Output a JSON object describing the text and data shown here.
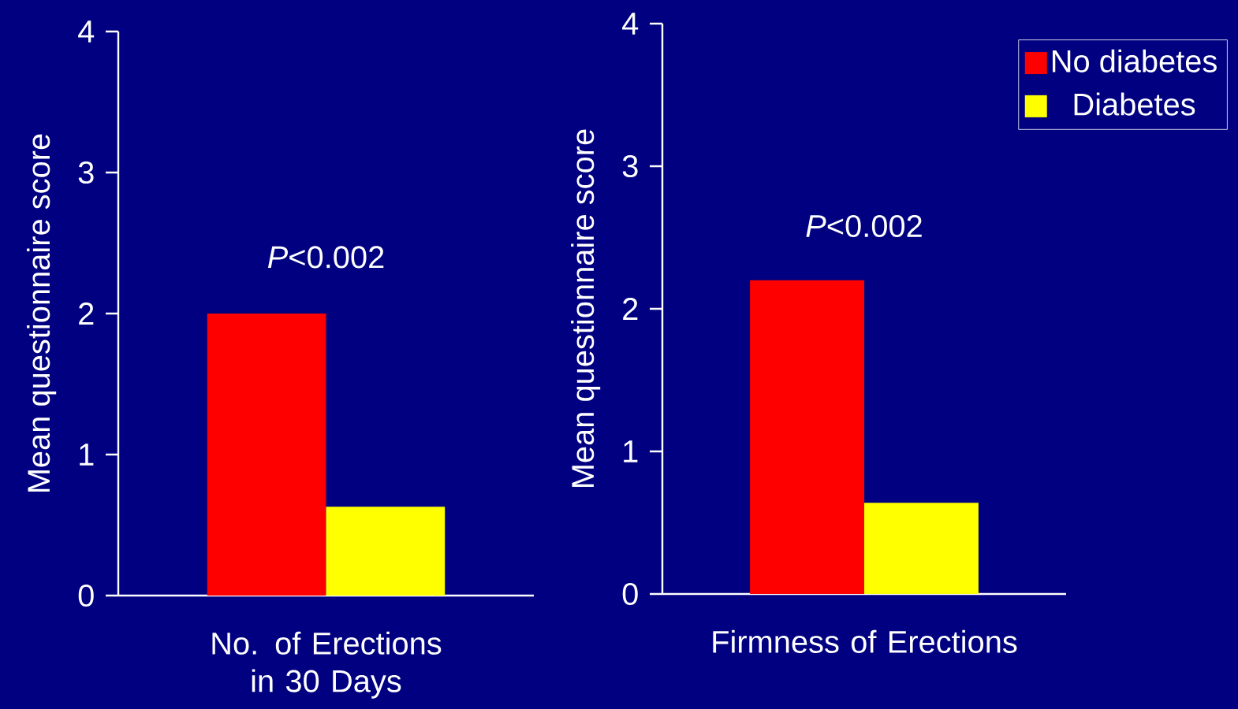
{
  "chart_data": [
    {
      "type": "bar",
      "ylabel": "Mean questionnaire score",
      "categories": [
        "No. of  Erections in 30 Days"
      ],
      "series": [
        {
          "color": "#ff0000",
          "values": [
            2.0
          ]
        },
        {
          "color": "#ffff00",
          "values": [
            0.63
          ]
        }
      ],
      "ylim": [
        0,
        4
      ],
      "yticks": [
        0,
        1,
        2,
        3,
        4
      ],
      "annotations": [
        "*P*<0.002"
      ]
    },
    {
      "type": "bar",
      "ylabel": "Mean questionnaire score",
      "categories": [
        "Firmness of Erections"
      ],
      "series": [
        {
          "name": "No diabetes",
          "color": "#ff0000",
          "values": [
            2.2
          ]
        },
        {
          "name": "Diabetes",
          "color": "#ffff00",
          "values": [
            0.64
          ]
        }
      ],
      "ylim": [
        0,
        4
      ],
      "yticks": [
        0,
        1,
        2,
        3,
        4
      ],
      "annotations": [
        "*P*<0.002"
      ],
      "legend": "top right"
    }
  ]
}
